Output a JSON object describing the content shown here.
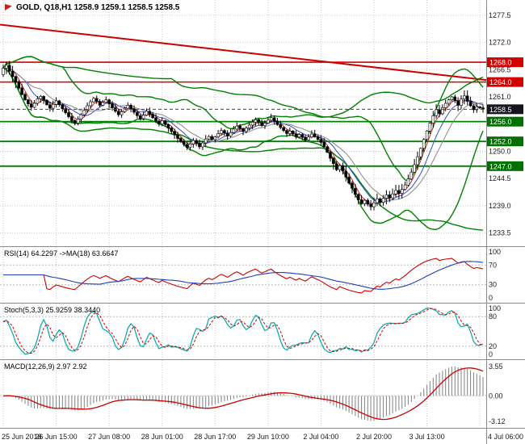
{
  "chart": {
    "title": "GOLD, Q18,H1 1258.9 1259.1 1258.5 1258.5",
    "symbol": "GOLD",
    "account_suffix": "Q18",
    "timeframe": "H1",
    "last_bar": {
      "open": 1258.9,
      "high": 1259.1,
      "low": 1258.5,
      "close": 1258.5
    }
  },
  "chart_data": {
    "type": "candlestick",
    "title": "GOLD, Q18,H1 1258.9 1259.1 1258.5 1258.5",
    "x_labels": [
      "25 Jun 2018",
      "26 Jun 15:00",
      "27 Jun 08:00",
      "28 Jun 01:00",
      "28 Jun 17:00",
      "29 Jun 10:00",
      "2 Jul 04:00",
      "2 Jul 20:00",
      "3 Jul 13:00",
      "4 Jul 06:00"
    ],
    "x_label_bars": [
      0,
      17,
      34,
      51,
      68,
      85,
      102,
      119,
      136,
      153
    ],
    "price_axis_ticks": [
      1277.5,
      1272.0,
      1266.5,
      1261.0,
      1255.5,
      1250.0,
      1244.5,
      1239.0,
      1233.5
    ],
    "price_range": [
      1231.8,
      1279.6
    ],
    "open_first": 1265.5,
    "closes": [
      1266.8,
      1267.4,
      1266.2,
      1265.1,
      1264.0,
      1262.8,
      1261.5,
      1260.4,
      1259.6,
      1258.9,
      1259.7,
      1260.6,
      1261.1,
      1260.3,
      1259.4,
      1258.7,
      1259.5,
      1260.2,
      1259.4,
      1258.6,
      1257.8,
      1257.0,
      1256.2,
      1255.7,
      1256.5,
      1257.4,
      1258.3,
      1259.2,
      1260.0,
      1260.7,
      1260.1,
      1259.3,
      1259.9,
      1260.4,
      1259.6,
      1258.8,
      1258.1,
      1257.4,
      1258.0,
      1258.7,
      1259.3,
      1258.6,
      1257.9,
      1257.2,
      1256.6,
      1257.3,
      1258.1,
      1257.5,
      1256.8,
      1256.1,
      1255.5,
      1256.2,
      1255.4,
      1254.7,
      1254.0,
      1253.3,
      1252.6,
      1252.0,
      1251.4,
      1250.8,
      1251.5,
      1252.2,
      1251.6,
      1250.9,
      1251.7,
      1252.5,
      1253.0,
      1252.4,
      1252.9,
      1253.6,
      1254.2,
      1253.7,
      1253.1,
      1253.8,
      1254.5,
      1255.1,
      1254.6,
      1254.0,
      1254.7,
      1255.3,
      1255.9,
      1256.4,
      1255.8,
      1255.2,
      1255.7,
      1256.3,
      1256.8,
      1256.1,
      1255.4,
      1254.8,
      1254.2,
      1253.6,
      1254.1,
      1253.5,
      1252.9,
      1253.4,
      1252.8,
      1252.3,
      1252.9,
      1253.5,
      1253.0,
      1252.4,
      1251.8,
      1250.9,
      1249.8,
      1248.6,
      1247.5,
      1246.3,
      1247.1,
      1246.0,
      1244.8,
      1243.6,
      1242.5,
      1241.3,
      1240.2,
      1239.4,
      1240.1,
      1239.3,
      1238.8,
      1239.6,
      1240.4,
      1239.7,
      1240.5,
      1241.2,
      1240.6,
      1241.4,
      1242.1,
      1241.5,
      1242.3,
      1243.2,
      1244.4,
      1245.8,
      1247.3,
      1248.9,
      1250.6,
      1252.4,
      1254.1,
      1255.7,
      1257.2,
      1258.4,
      1257.6,
      1258.8,
      1259.7,
      1260.4,
      1261.0,
      1260.2,
      1259.3,
      1260.6,
      1261.2,
      1260.1,
      1259.2,
      1258.4,
      1259.0,
      1258.8,
      1258.5
    ],
    "levels": {
      "resistance": [
        1268.0,
        1264.0
      ],
      "support": [
        1256.0,
        1252.0,
        1247.0
      ],
      "current_price": 1258.5
    },
    "trend_line": {
      "start_price": 1275.6,
      "end_price": 1264.4
    },
    "bands": [
      {
        "period": 20,
        "dev": 2
      },
      {
        "period": 55,
        "dev": 2
      }
    ],
    "mas": [
      {
        "period": 4,
        "color": "#c03030"
      },
      {
        "period": 8,
        "color": "#3050c8"
      },
      {
        "period": 13,
        "color": "#8a8a8a"
      }
    ],
    "indicators": {
      "rsi": {
        "label": "RSI(14) 64.2297",
        "ma_label": "->MA(18) 63.6647",
        "period": 14,
        "ma_period": 18,
        "level_lines": [
          70,
          30
        ],
        "axis_values": [
          100,
          70,
          30,
          0
        ],
        "axis_labels": [
          "100",
          "70",
          "30",
          "0"
        ]
      },
      "stoch": {
        "label": "Stoch(5,3,3) 25.9259 38.3440",
        "k": 5,
        "slowing": 3,
        "d": 3,
        "level_lines": [
          80,
          20
        ],
        "axis_values": [
          100,
          80,
          20,
          0
        ],
        "axis_labels": [
          "100",
          "80",
          "20",
          "0"
        ]
      },
      "macd": {
        "label": "MACD(12,26,9) 2.97 2.92",
        "fast": 12,
        "slow": 26,
        "signal": 9,
        "axis_values": [
          3.55,
          0,
          -3.12
        ],
        "axis_labels": [
          "3.55",
          "0.00",
          "-3.12"
        ]
      }
    }
  },
  "colors": {
    "background": "#ffffff",
    "grid": "#c9c9c9",
    "separator": "#8c8c8c",
    "candle_up_fill": "#ffffff",
    "candle_down_fill": "#000000",
    "candle_outline": "#000000",
    "band_green": "#008000",
    "level_resistance": "#d40000",
    "level_support": "#008000",
    "support_box": "#007000",
    "trend_line": "#cc0000",
    "current_price_bg": "#15151f",
    "rsi_line": "#cc0000",
    "rsi_ma": "#2040b8",
    "stoch_k": "#00a8a8",
    "stoch_d": "#cc0000",
    "macd_hist": "#808080",
    "macd_signal": "#cc0000",
    "axis_text": "#1a1a1a",
    "label_text": "#ffffff"
  }
}
